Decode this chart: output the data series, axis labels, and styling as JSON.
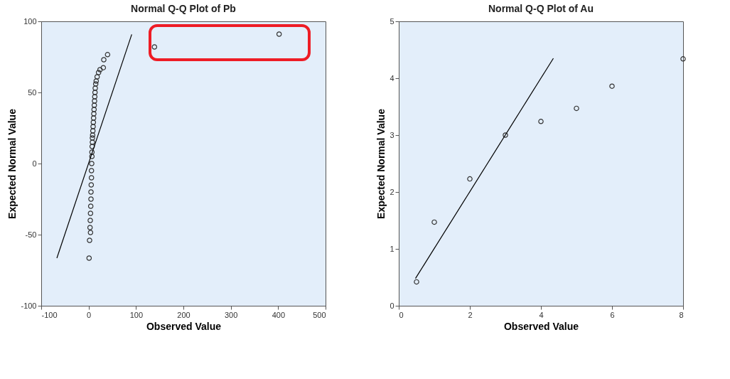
{
  "chart_data": [
    {
      "type": "scatter",
      "title": "Normal Q-Q Plot of Pb",
      "xlabel": "Observed Value",
      "ylabel": "Expected Normal Value",
      "xlim": [
        -100,
        500
      ],
      "ylim": [
        -100,
        100
      ],
      "xticks": [
        -100,
        0,
        100,
        200,
        300,
        400,
        500
      ],
      "yticks": [
        -100,
        -50,
        0,
        50,
        100
      ],
      "grid": false,
      "series": [
        {
          "type": "scatter",
          "marker": "circle",
          "color": "#333333",
          "x": [
            1,
            2,
            4,
            3,
            3.5,
            4,
            4.5,
            5,
            5,
            5.5,
            6,
            6,
            6.5,
            7,
            7,
            7.5,
            8,
            8,
            8.5,
            9,
            9.5,
            10,
            10.5,
            11,
            11.5,
            12,
            12.5,
            13,
            13.5,
            14,
            15,
            16,
            18,
            21,
            24,
            31,
            32,
            40,
            139,
            402
          ],
          "values": [
            -66.5,
            -54,
            -48.5,
            -45,
            -40,
            -35,
            -30,
            -25,
            -20,
            -15,
            -10,
            -5,
            0,
            5,
            8,
            12,
            15,
            18,
            20,
            23,
            26,
            29,
            32,
            35,
            38,
            41,
            44,
            47,
            50,
            53,
            56,
            58,
            61,
            64,
            66,
            67.4,
            73,
            76.6,
            82,
            91
          ]
        },
        {
          "type": "line",
          "marker": "none",
          "color": "#000000",
          "x": [
            -67,
            91
          ],
          "values": [
            -66.5,
            90.8
          ]
        }
      ]
    },
    {
      "type": "scatter",
      "title": "Normal Q-Q Plot of Au",
      "xlabel": "Observed Value",
      "ylabel": "Expected Normal Value",
      "xlim": [
        0,
        8
      ],
      "ylim": [
        0,
        5
      ],
      "xticks": [
        0,
        2,
        4,
        6,
        8
      ],
      "yticks": [
        0,
        1,
        2,
        3,
        4,
        5
      ],
      "grid": false,
      "series": [
        {
          "type": "scatter",
          "marker": "circle",
          "color": "#333333",
          "x": [
            0.5,
            1,
            2,
            3,
            4,
            5,
            6,
            8
          ],
          "values": [
            0.42,
            1.47,
            2.23,
            3.0,
            3.24,
            3.47,
            3.86,
            4.34
          ]
        },
        {
          "type": "line",
          "marker": "none",
          "color": "#000000",
          "x": [
            0.47,
            4.35
          ],
          "values": [
            0.48,
            4.35
          ]
        }
      ]
    }
  ]
}
